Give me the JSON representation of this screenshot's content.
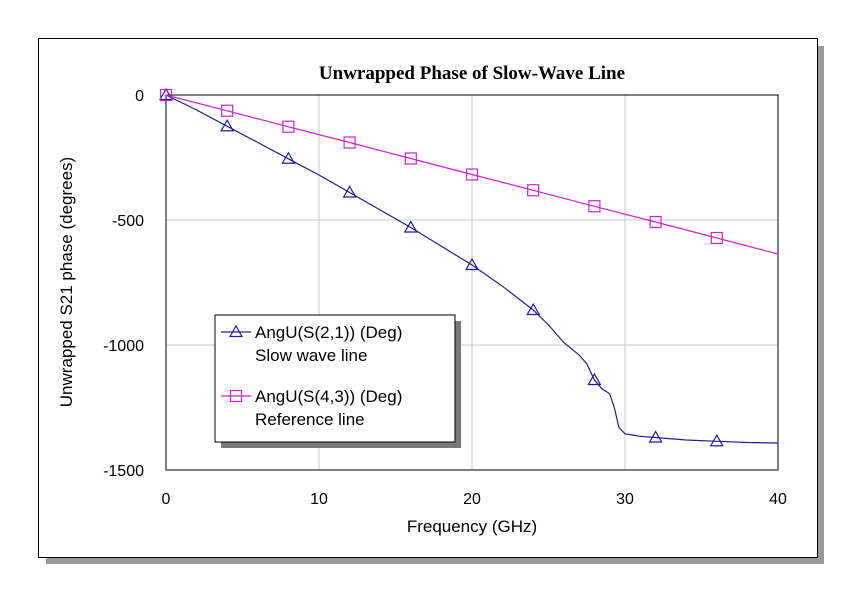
{
  "chart_data": {
    "type": "line",
    "title": "Unwrapped Phase of Slow-Wave Line",
    "xlabel": "Frequency (GHz)",
    "ylabel": "Unwrapped S21 phase (degrees)",
    "xlim": [
      0,
      40
    ],
    "ylim": [
      -1500,
      0
    ],
    "xticks": [
      "0",
      "10",
      "20",
      "30",
      "40"
    ],
    "yticks": [
      "0",
      "-500",
      "-1000",
      "-1500"
    ],
    "grid": true,
    "legend_position": "bottom-left",
    "series": [
      {
        "name": "AngU(S(2,1)) (Deg)",
        "subtitle": "Slow wave line",
        "color": "#1c1c9c",
        "marker": "triangle",
        "points": [
          [
            0,
            0
          ],
          [
            2,
            -60
          ],
          [
            4,
            -125
          ],
          [
            6,
            -190
          ],
          [
            8,
            -255
          ],
          [
            10,
            -320
          ],
          [
            12,
            -390
          ],
          [
            14,
            -460
          ],
          [
            16,
            -530
          ],
          [
            18,
            -605
          ],
          [
            20,
            -680
          ],
          [
            22,
            -765
          ],
          [
            24,
            -860
          ],
          [
            25,
            -920
          ],
          [
            26,
            -990
          ],
          [
            27,
            -1040
          ],
          [
            27.5,
            -1075
          ],
          [
            28,
            -1140
          ],
          [
            28.5,
            -1175
          ],
          [
            29,
            -1195
          ],
          [
            29.3,
            -1250
          ],
          [
            29.6,
            -1330
          ],
          [
            30,
            -1355
          ],
          [
            31,
            -1365
          ],
          [
            32,
            -1370
          ],
          [
            34,
            -1380
          ],
          [
            36,
            -1385
          ],
          [
            38,
            -1390
          ],
          [
            40,
            -1392
          ]
        ],
        "markers_x": [
          0,
          4,
          8,
          12,
          16,
          20,
          24,
          28,
          32,
          36
        ]
      },
      {
        "name": "AngU(S(4,3)) (Deg)",
        "subtitle": "Reference line",
        "color": "#cc22cc",
        "marker": "square",
        "points": [
          [
            0,
            0
          ],
          [
            4,
            -63
          ],
          [
            8,
            -127
          ],
          [
            12,
            -190
          ],
          [
            16,
            -254
          ],
          [
            20,
            -318
          ],
          [
            24,
            -381
          ],
          [
            28,
            -445
          ],
          [
            32,
            -508
          ],
          [
            36,
            -572
          ],
          [
            40,
            -636
          ]
        ],
        "markers_x": [
          0,
          4,
          8,
          12,
          16,
          20,
          24,
          28,
          32,
          36
        ]
      }
    ]
  }
}
